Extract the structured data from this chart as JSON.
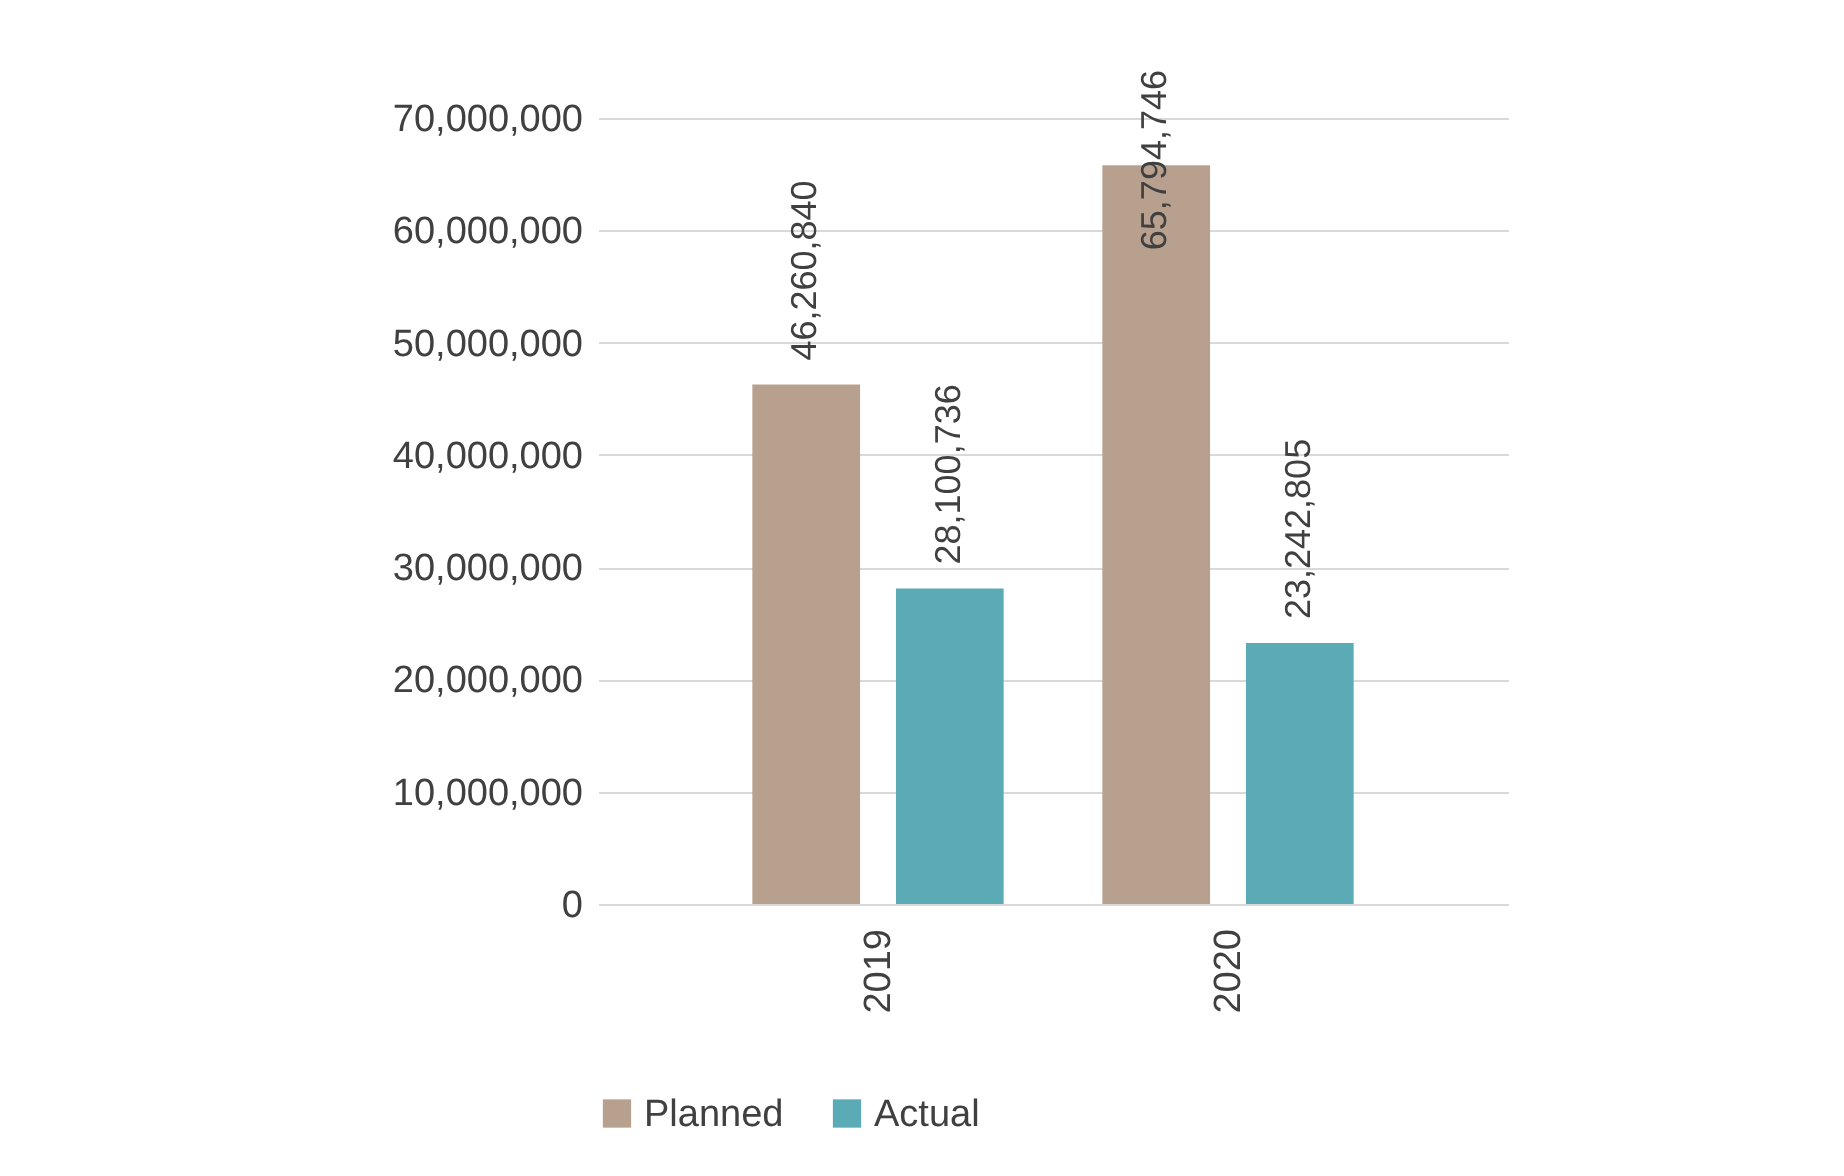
{
  "chart_data": {
    "type": "bar",
    "categories": [
      "2019",
      "2020"
    ],
    "series": [
      {
        "name": "Planned",
        "color": "#b8a08e",
        "values": [
          46260840,
          65794746
        ],
        "value_labels": [
          "46,260,840",
          "65,794,746"
        ]
      },
      {
        "name": "Actual",
        "color": "#5aabb5",
        "values": [
          28100736,
          23242805
        ],
        "value_labels": [
          "28,100,736",
          "23,242,805"
        ]
      }
    ],
    "ylim": [
      0,
      70000000
    ],
    "yticks": [
      {
        "value": 0,
        "label": "0"
      },
      {
        "value": 10000000,
        "label": "10,000,000"
      },
      {
        "value": 20000000,
        "label": "20,000,000"
      },
      {
        "value": 30000000,
        "label": "30,000,000"
      },
      {
        "value": 40000000,
        "label": "40,000,000"
      },
      {
        "value": 50000000,
        "label": "50,000,000"
      },
      {
        "value": 60000000,
        "label": "60,000,000"
      },
      {
        "value": 70000000,
        "label": "70,000,000"
      }
    ],
    "grid": "y",
    "legend": "bottom"
  }
}
